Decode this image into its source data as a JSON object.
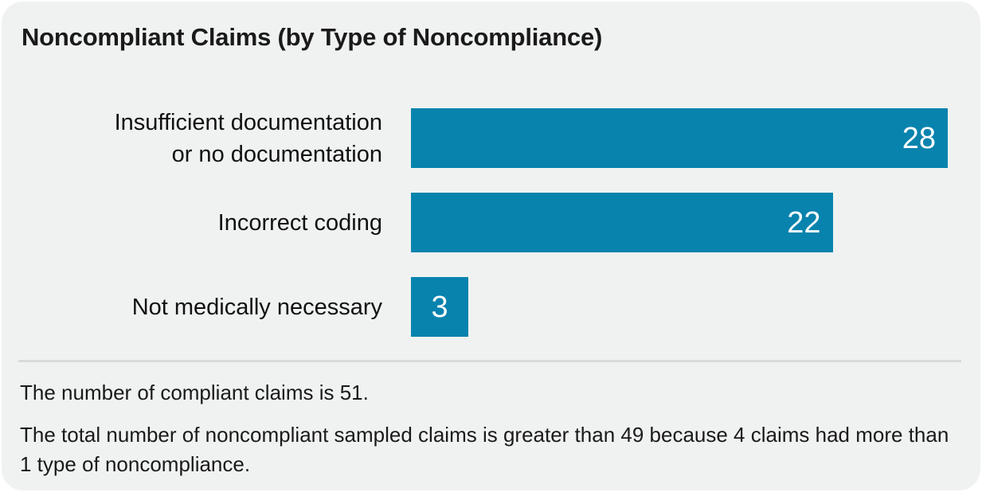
{
  "card": {
    "title": "Noncompliant Claims (by Type of Noncompliance)"
  },
  "chart_data": {
    "type": "bar",
    "orientation": "horizontal",
    "title": "Noncompliant Claims (by Type of Noncompliance)",
    "categories": [
      "Insufficient documentation\nor no documentation",
      "Incorrect coding",
      "Not medically necessary"
    ],
    "values": [
      28,
      22,
      3
    ],
    "xlim": [
      0,
      28
    ],
    "value_labels_shown": true,
    "value_label_position": "inside-end",
    "gridlines": false,
    "axes_hidden": true,
    "legend": false,
    "bar_color": "#0883ad",
    "value_label_color": "#ffffff"
  },
  "footnotes": [
    "The number of compliant claims is 51.",
    "The total number of noncompliant sampled claims is greater than 49 because 4 claims had more than 1 type of noncompliance."
  ],
  "colors": {
    "bar": "#0883ad",
    "card_background": "#f0f2f1",
    "divider": "#d9d9d9",
    "text": "#1a1a1a",
    "page_background": "#ffffff"
  }
}
